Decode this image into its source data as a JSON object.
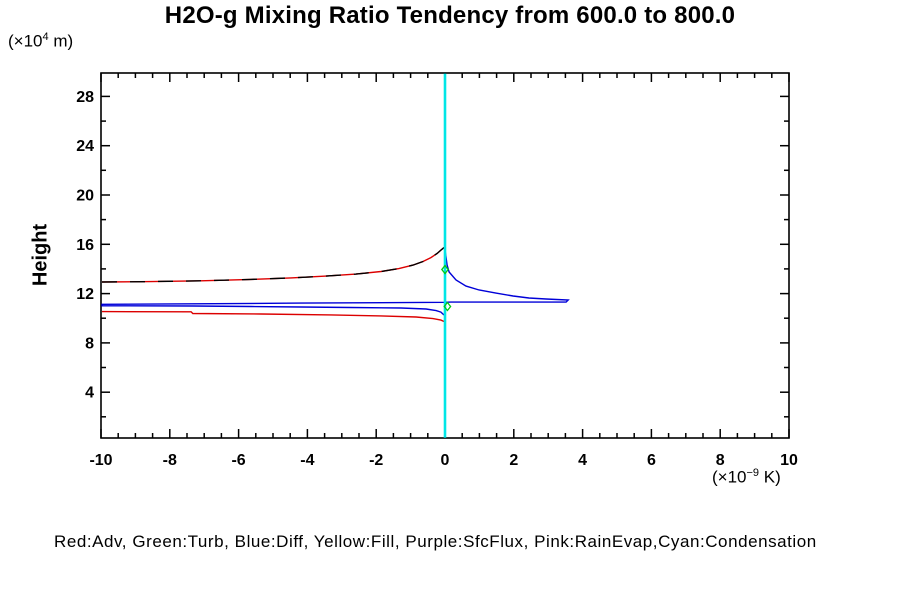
{
  "title": "H2O-g Mixing Ratio Tendency from 600.0 to 800.0",
  "y_axis_title": "Height",
  "y_axis_unit": {
    "prefix": "(×10",
    "exp": "4",
    "suffix": " m)"
  },
  "x_axis_unit": {
    "prefix": "(×10",
    "exp": "−9",
    "suffix": " K)"
  },
  "legend_text": "Red:Adv, Green:Turb, Blue:Diff, Yellow:Fill, Purple:SfcFlux, Pink:RainEvap,Cyan:Condensation",
  "colors": {
    "background": "#ffffff",
    "axis": "#000000",
    "red": "#dc0000",
    "blue": "#0000d8",
    "cyan": "#00e6e6",
    "green": "#00c814",
    "black_dash": "#000000"
  },
  "chart_data": {
    "type": "line",
    "orientation": "vertical-profile",
    "title": "H2O-g Mixing Ratio Tendency from 600.0 to 800.0",
    "xlabel": "(x10^-9 K)",
    "ylabel": "Height (x10^4 m)",
    "xlim": [
      -10,
      10
    ],
    "ylim": [
      0.28,
      29.9
    ],
    "grid": false,
    "x_ticks_major": [
      -10,
      -8,
      -6,
      -4,
      -2,
      0,
      2,
      4,
      6,
      8,
      10
    ],
    "x_minor_step": 0.5,
    "y_ticks_major": [
      4,
      8,
      12,
      16,
      20,
      24,
      28
    ],
    "y_ticks_minor": [
      2,
      6,
      10,
      14,
      18,
      22,
      26
    ],
    "series": [
      {
        "name": "Adv",
        "color_key": "red",
        "style": "solid",
        "paths": [
          [
            [
              -9.97,
              12.94
            ],
            [
              -8.55,
              12.97
            ],
            [
              -7.09,
              13.04
            ],
            [
              -5.64,
              13.15
            ],
            [
              -4.48,
              13.27
            ],
            [
              -3.46,
              13.42
            ],
            [
              -2.59,
              13.58
            ],
            [
              -1.86,
              13.79
            ],
            [
              -1.34,
              14.03
            ],
            [
              -0.93,
              14.31
            ],
            [
              -0.64,
              14.6
            ],
            [
              -0.41,
              14.92
            ],
            [
              -0.23,
              15.25
            ],
            [
              -0.12,
              15.53
            ],
            [
              -0.03,
              15.73
            ]
          ],
          [
            [
              -9.97,
              10.54
            ],
            [
              -7.38,
              10.52
            ],
            [
              -7.33,
              10.38
            ],
            [
              -5.35,
              10.34
            ],
            [
              -3.31,
              10.27
            ],
            [
              -1.86,
              10.19
            ],
            [
              -0.84,
              10.1
            ],
            [
              -0.35,
              9.97
            ],
            [
              -0.12,
              9.85
            ],
            [
              -0.03,
              9.73
            ]
          ]
        ]
      },
      {
        "name": "black-dashed-overlay",
        "color_key": "black_dash",
        "style": "dashed",
        "dash": "15 13",
        "paths": [
          [
            [
              -9.97,
              12.94
            ],
            [
              -8.55,
              12.97
            ],
            [
              -7.09,
              13.04
            ],
            [
              -5.64,
              13.15
            ],
            [
              -4.48,
              13.27
            ],
            [
              -3.46,
              13.42
            ],
            [
              -2.59,
              13.58
            ],
            [
              -1.86,
              13.79
            ],
            [
              -1.34,
              14.03
            ],
            [
              -0.93,
              14.31
            ],
            [
              -0.64,
              14.6
            ],
            [
              -0.41,
              14.92
            ],
            [
              -0.23,
              15.25
            ],
            [
              -0.12,
              15.53
            ],
            [
              -0.03,
              15.73
            ]
          ]
        ]
      },
      {
        "name": "Diff",
        "color_key": "blue",
        "style": "solid",
        "paths": [
          [
            [
              0.01,
              15.37
            ],
            [
              0.06,
              14.31
            ],
            [
              0.12,
              13.75
            ],
            [
              0.32,
              13.1
            ],
            [
              0.61,
              12.61
            ],
            [
              0.99,
              12.29
            ],
            [
              1.48,
              12.04
            ],
            [
              1.98,
              11.8
            ],
            [
              2.44,
              11.64
            ],
            [
              2.94,
              11.56
            ],
            [
              3.58,
              11.48
            ],
            [
              3.52,
              11.31
            ],
            [
              0.17,
              11.31
            ],
            [
              -0.03,
              11.29
            ],
            [
              -4.19,
              11.23
            ],
            [
              -7.33,
              11.17
            ],
            [
              -9.97,
              11.13
            ],
            [
              -9.97,
              11.01
            ],
            [
              -7.33,
              10.99
            ],
            [
              -5.64,
              10.95
            ],
            [
              -4.19,
              10.91
            ],
            [
              -2.73,
              10.87
            ],
            [
              -1.28,
              10.83
            ],
            [
              -0.55,
              10.75
            ],
            [
              -0.26,
              10.62
            ],
            [
              -0.12,
              10.5
            ],
            [
              -0.03,
              10.26
            ]
          ]
        ]
      },
      {
        "name": "Condensation",
        "color_key": "cyan",
        "style": "vline",
        "width": 2.6,
        "paths": [
          [
            [
              0,
              0.3
            ],
            [
              0,
              29.85
            ]
          ]
        ]
      },
      {
        "name": "Turb",
        "color_key": "green",
        "style": "markers",
        "marker": "diamond",
        "points": [
          [
            0.0,
            13.95
          ],
          [
            0.07,
            10.95
          ]
        ]
      }
    ]
  }
}
